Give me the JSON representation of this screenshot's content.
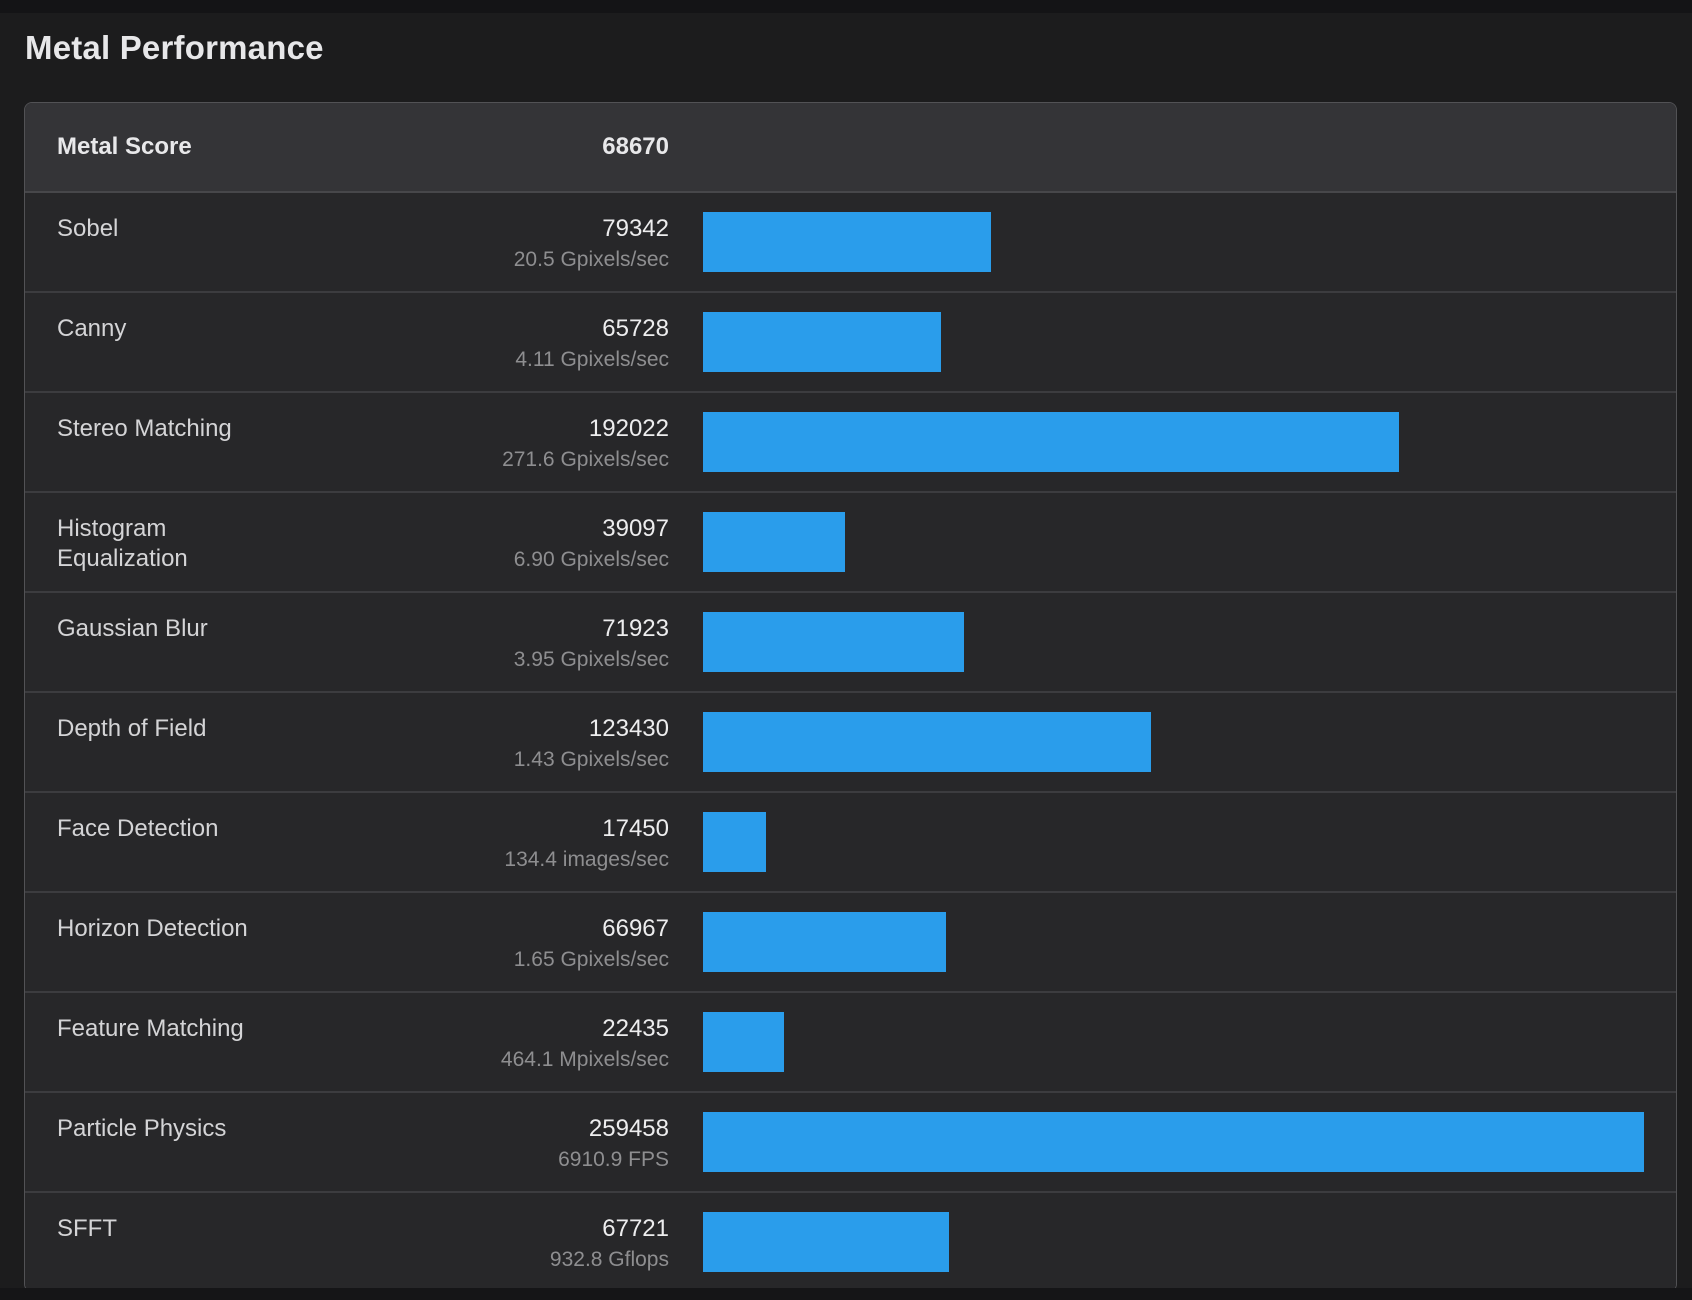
{
  "page": {
    "title": "Metal Performance",
    "colors": {
      "bar_blue": "#2a9deb",
      "row_background": "#272729",
      "header_background": "#343437",
      "page_background": "#1c1c1d"
    }
  },
  "score_table": {
    "header": {
      "label": "Metal Score",
      "value": "68670"
    },
    "max_score": 259458,
    "rows": [
      {
        "name": "Sobel",
        "score": 79342,
        "rate": "20.5 Gpixels/sec"
      },
      {
        "name": "Canny",
        "score": 65728,
        "rate": "4.11 Gpixels/sec"
      },
      {
        "name": "Stereo Matching",
        "score": 192022,
        "rate": "271.6 Gpixels/sec"
      },
      {
        "name": "Histogram Equalization",
        "score": 39097,
        "rate": "6.90 Gpixels/sec"
      },
      {
        "name": "Gaussian Blur",
        "score": 71923,
        "rate": "3.95 Gpixels/sec"
      },
      {
        "name": "Depth of Field",
        "score": 123430,
        "rate": "1.43 Gpixels/sec"
      },
      {
        "name": "Face Detection",
        "score": 17450,
        "rate": "134.4 images/sec"
      },
      {
        "name": "Horizon Detection",
        "score": 66967,
        "rate": "1.65 Gpixels/sec"
      },
      {
        "name": "Feature Matching",
        "score": 22435,
        "rate": "464.1 Mpixels/sec"
      },
      {
        "name": "Particle Physics",
        "score": 259458,
        "rate": "6910.9 FPS"
      },
      {
        "name": "SFFT",
        "score": 67721,
        "rate": "932.8 Gflops"
      }
    ]
  },
  "chart_data": {
    "type": "bar",
    "title": "Metal Performance",
    "orientation": "horizontal",
    "categories": [
      "Sobel",
      "Canny",
      "Stereo Matching",
      "Histogram Equalization",
      "Gaussian Blur",
      "Depth of Field",
      "Face Detection",
      "Horizon Detection",
      "Feature Matching",
      "Particle Physics",
      "SFFT"
    ],
    "values": [
      79342,
      65728,
      192022,
      39097,
      71923,
      123430,
      17450,
      66967,
      22435,
      259458,
      67721
    ],
    "value_labels": [
      "20.5 Gpixels/sec",
      "4.11 Gpixels/sec",
      "271.6 Gpixels/sec",
      "6.90 Gpixels/sec",
      "3.95 Gpixels/sec",
      "1.43 Gpixels/sec",
      "134.4 images/sec",
      "1.65 Gpixels/sec",
      "464.1 Mpixels/sec",
      "6910.9 FPS",
      "932.8 Gflops"
    ],
    "xlim": [
      0,
      259458
    ],
    "grid": false,
    "legend": false
  }
}
